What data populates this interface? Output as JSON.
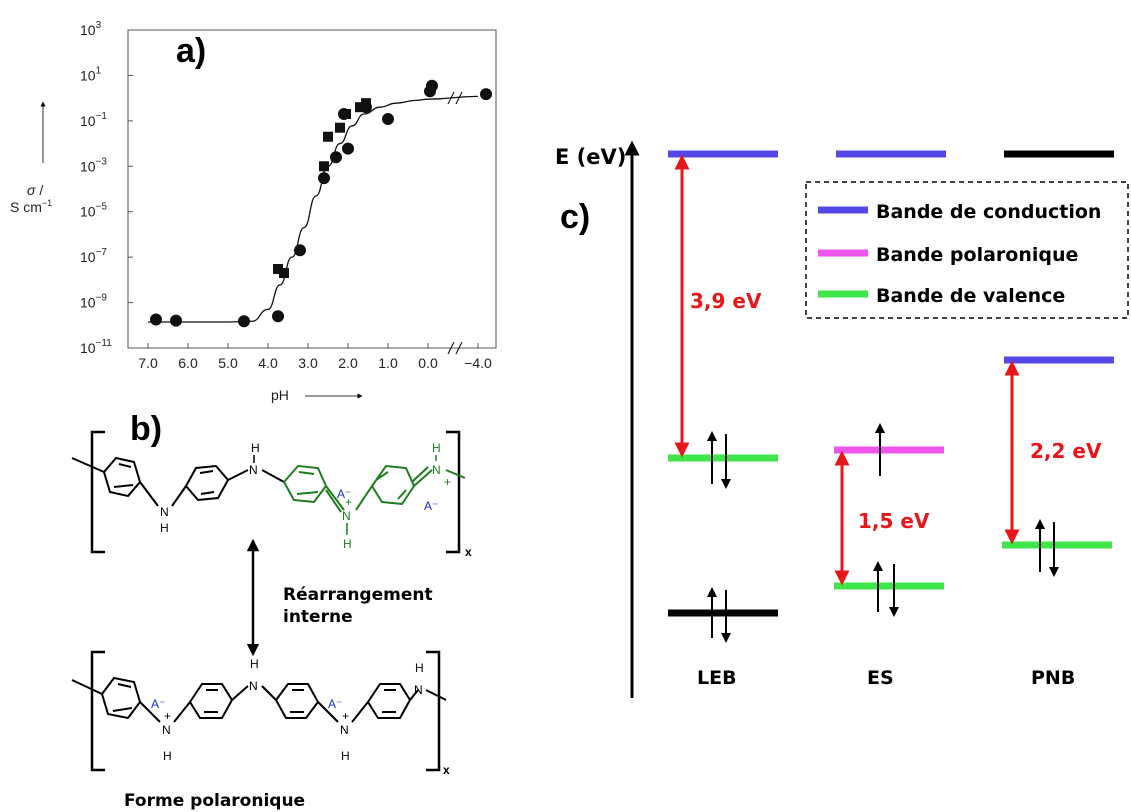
{
  "panels": {
    "a": "a)",
    "b": "b)",
    "c": "c)"
  },
  "chart_data": [
    {
      "type": "scatter",
      "panel": "a)",
      "title": "",
      "xlabel": "pH",
      "ylabel": "σ / S cm⁻¹",
      "y_scale": "log",
      "ylim": [
        1e-11,
        1000.0
      ],
      "x_ticks": [
        "7.0",
        "6.0",
        "5.0",
        "4.0",
        "3.0",
        "2.0",
        "1.0",
        "0.0",
        "−4.0"
      ],
      "y_ticks": [
        "10^3",
        "10^1",
        "10^-1",
        "10^-3",
        "10^-5",
        "10^-7",
        "10^-9",
        "10^-11"
      ],
      "y_tick_exponents": [
        3,
        1,
        -1,
        -3,
        -5,
        -7,
        -9,
        -11
      ],
      "x_ticks_pos": [
        7.0,
        6.0,
        5.0,
        4.0,
        3.0,
        2.0,
        1.0,
        0.0,
        -4.0
      ],
      "axis_break_between": [
        0.0,
        -4.0
      ],
      "series": [
        {
          "marker": "circle",
          "points": [
            [
              6.8,
              1.8e-10
            ],
            [
              6.3,
              1.6e-10
            ],
            [
              4.6,
              1.5e-10
            ],
            [
              3.75,
              2.5e-10
            ],
            [
              3.2,
              2e-07
            ],
            [
              2.6,
              0.0003
            ],
            [
              2.3,
              0.0025
            ],
            [
              2.0,
              0.006
            ],
            [
              2.1,
              0.2
            ],
            [
              1.55,
              0.4
            ],
            [
              1.0,
              0.12
            ],
            [
              -0.05,
              2
            ],
            [
              -0.1,
              3.5
            ],
            [
              -4.2,
              1.5
            ]
          ]
        },
        {
          "marker": "square",
          "points": [
            [
              3.75,
              3e-08
            ],
            [
              3.6,
              2e-08
            ],
            [
              2.6,
              0.001
            ],
            [
              2.5,
              0.02
            ],
            [
              2.2,
              0.05
            ],
            [
              2.05,
              0.2
            ],
            [
              1.7,
              0.4
            ],
            [
              1.55,
              0.6
            ]
          ]
        }
      ],
      "fit_curve": [
        [
          7.0,
          1.4e-10
        ],
        [
          5.0,
          1.4e-10
        ],
        [
          4.4,
          1.5e-10
        ],
        [
          4.0,
          5e-10
        ],
        [
          3.7,
          6e-09
        ],
        [
          3.4,
          1e-07
        ],
        [
          3.1,
          2e-06
        ],
        [
          2.8,
          5e-05
        ],
        [
          2.5,
          0.001
        ],
        [
          2.2,
          0.01
        ],
        [
          1.9,
          0.06
        ],
        [
          1.6,
          0.2
        ],
        [
          1.2,
          0.4
        ],
        [
          0.8,
          0.6
        ],
        [
          0.3,
          0.8
        ],
        [
          0.0,
          0.9
        ],
        [
          -4.0,
          1.2
        ]
      ]
    },
    {
      "type": "diagram",
      "panel": "c)",
      "ylabel": "E (eV)",
      "legend": [
        {
          "label": "Bande de conduction",
          "color": "#5548e6"
        },
        {
          "label": "Bande polaronique",
          "color": "#ee55ee"
        },
        {
          "label": "Bande de valence",
          "color": "#3fe64a"
        }
      ],
      "columns": [
        {
          "label": "LEB",
          "gap": "3,9 eV"
        },
        {
          "label": "ES",
          "gap": "1,5 eV"
        },
        {
          "label": "PNB",
          "gap": "2,2 eV"
        }
      ]
    }
  ],
  "chem": {
    "rearrangement": [
      "Réarrangement",
      "interne"
    ],
    "form_label": "Forme polaronique",
    "subscript": "x",
    "H": "H",
    "N": "N",
    "anion": "A⁻",
    "plus": "+"
  }
}
